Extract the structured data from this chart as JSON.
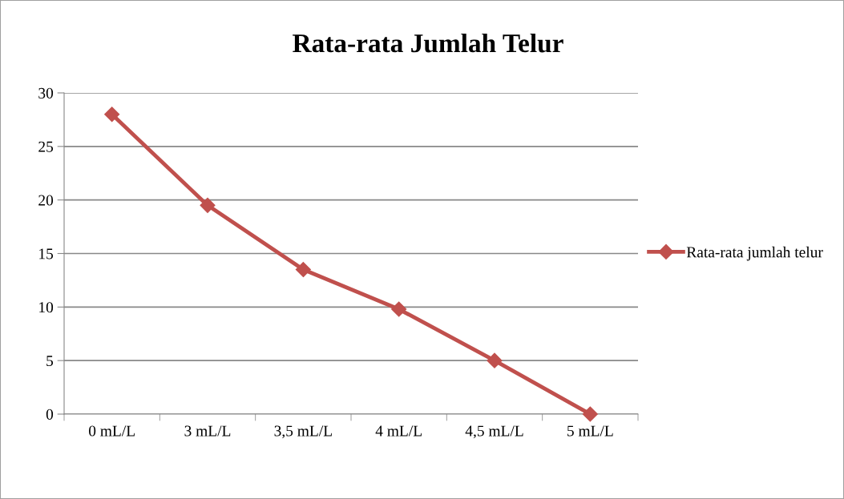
{
  "chart_data": {
    "type": "line",
    "title": "Rata-rata Jumlah Telur",
    "categories": [
      "0 mL/L",
      "3 mL/L",
      "3,5 mL/L",
      "4 mL/L",
      "4,5 mL/L",
      "5 mL/L"
    ],
    "series": [
      {
        "name": "Rata-rata jumlah telur",
        "color": "#c0504d",
        "values": [
          28,
          19.5,
          13.5,
          9.8,
          5,
          0
        ]
      }
    ],
    "ylim": [
      0,
      30
    ],
    "yticks": [
      0,
      5,
      10,
      15,
      20,
      25,
      30
    ],
    "grid": "y",
    "legend": "right",
    "marker": "diamond",
    "line_style": "solid"
  }
}
